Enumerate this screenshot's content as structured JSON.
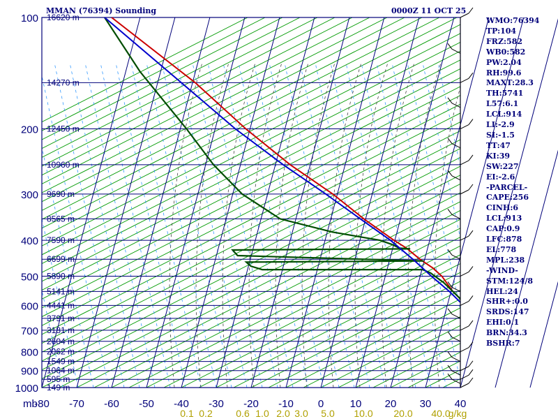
{
  "header": {
    "title": "MMAN (76394) Sounding",
    "time": "0000Z 11 OCT 25"
  },
  "indices": [
    "WMO:76394",
    "TP:104",
    "FRZ:582",
    "WB0:582",
    "PW:2.04",
    "RH:99.6",
    "MAXT:28.3",
    "TH:5741",
    "L57:6.1",
    "LCL:914",
    "LI:-2.9",
    "SI:-1.5",
    "TT:47",
    "KI:39",
    "SW:227",
    "EI:-2.6",
    "-PARCEL-",
    "CAPE:256",
    "CINH:6",
    "LCL:913",
    "CAP:0.9",
    "LFC:878",
    "EL:778",
    "MPL:238",
    "-WIND-",
    "STM:124/8",
    "HEL:24",
    "SHR+:0.0",
    "SRDS:147",
    "EHI:0.1",
    "BRN:34.3",
    "BSHR:7"
  ],
  "colors": {
    "grid": "#00007a",
    "dry_adiabat": "#009a00",
    "moist_adiabat": "#444444",
    "mixing_ratio": "#3399ff",
    "temperature": "#cc0000",
    "dewpoint": "#004d00",
    "parcel": "#0000cc",
    "axis_text": "#00007a",
    "mixing_text": "#b0a000"
  },
  "chart_data": {
    "type": "line",
    "title": "MMAN (76394) Sounding",
    "subtitle": "0000Z 11 OCT 25",
    "y_axis_unit": "mb",
    "pressure_levels": [
      100,
      200,
      300,
      400,
      500,
      600,
      700,
      800,
      900,
      1000
    ],
    "temperature_ticks": [
      -80,
      -70,
      -60,
      -50,
      -40,
      -30,
      -20,
      -10,
      0,
      10,
      20,
      30,
      40
    ],
    "mixing_ratio_ticks": [
      "0.1",
      "0.2",
      "0.6",
      "1.0",
      "2.0",
      "3.0",
      "5.0",
      "10.0",
      "20.0",
      "40.0"
    ],
    "mixing_ratio_unit": "g/kg",
    "height_labels": [
      "16620 m",
      "14270 m",
      "12450 m",
      "10960 m",
      "9690 m",
      "8565 m",
      "7590 m",
      "6699 m",
      "5890 m",
      "5141 m",
      "4441 m",
      "3791 m",
      "3181 m",
      "2604 m",
      "2062 m",
      "1549 m",
      "1064 m",
      "595 m",
      "149 m"
    ],
    "height_pressures": [
      100,
      150,
      200,
      250,
      300,
      350,
      400,
      450,
      500,
      550,
      600,
      650,
      700,
      750,
      800,
      850,
      900,
      950,
      1000
    ],
    "series": [
      {
        "key": "temperature",
        "points": [
          [
            100,
            -80
          ],
          [
            150,
            -61
          ],
          [
            200,
            -50
          ],
          [
            250,
            -40
          ],
          [
            300,
            -30
          ],
          [
            350,
            -23
          ],
          [
            400,
            -16
          ],
          [
            420,
            -13
          ],
          [
            450,
            -10
          ],
          [
            475,
            -7
          ],
          [
            500,
            -5
          ],
          [
            550,
            -3
          ],
          [
            600,
            0
          ],
          [
            650,
            3
          ],
          [
            700,
            7
          ],
          [
            750,
            10
          ],
          [
            800,
            13
          ],
          [
            850,
            16
          ],
          [
            900,
            19
          ],
          [
            925,
            21
          ],
          [
            950,
            22
          ],
          [
            965,
            24
          ]
        ]
      },
      {
        "key": "dewpoint",
        "points": [
          [
            100,
            -82
          ],
          [
            140,
            -76
          ],
          [
            200,
            -67
          ],
          [
            250,
            -62
          ],
          [
            300,
            -56
          ],
          [
            350,
            -47
          ],
          [
            380,
            -33
          ],
          [
            400,
            -20
          ],
          [
            410,
            -17
          ],
          [
            420,
            -15
          ],
          [
            422,
            -12
          ],
          [
            423,
            -35
          ],
          [
            425,
            -63
          ],
          [
            440,
            -62
          ],
          [
            455,
            -9
          ],
          [
            458,
            -60
          ],
          [
            470,
            -59
          ],
          [
            480,
            -56
          ],
          [
            480,
            -10
          ],
          [
            490,
            -8
          ],
          [
            500,
            -7
          ],
          [
            520,
            -5
          ],
          [
            550,
            -3
          ],
          [
            600,
            0
          ],
          [
            650,
            3
          ],
          [
            700,
            6
          ],
          [
            750,
            9
          ],
          [
            800,
            12
          ],
          [
            850,
            15
          ],
          [
            900,
            17
          ],
          [
            925,
            19
          ],
          [
            950,
            21
          ],
          [
            960,
            20
          ],
          [
            963,
            21
          ],
          [
            965,
            24
          ]
        ]
      },
      {
        "key": "parcel",
        "points": [
          [
            100,
            -82
          ],
          [
            150,
            -65
          ],
          [
            200,
            -53
          ],
          [
            250,
            -42
          ],
          [
            300,
            -32
          ],
          [
            350,
            -24
          ],
          [
            400,
            -17
          ],
          [
            450,
            -12
          ],
          [
            500,
            -8
          ],
          [
            550,
            -4
          ],
          [
            600,
            -1
          ],
          [
            650,
            3
          ],
          [
            700,
            6
          ],
          [
            750,
            9
          ],
          [
            800,
            13
          ],
          [
            850,
            16
          ],
          [
            900,
            19
          ],
          [
            935,
            21
          ],
          [
            950,
            22
          ],
          [
            965,
            24
          ]
        ]
      }
    ]
  }
}
